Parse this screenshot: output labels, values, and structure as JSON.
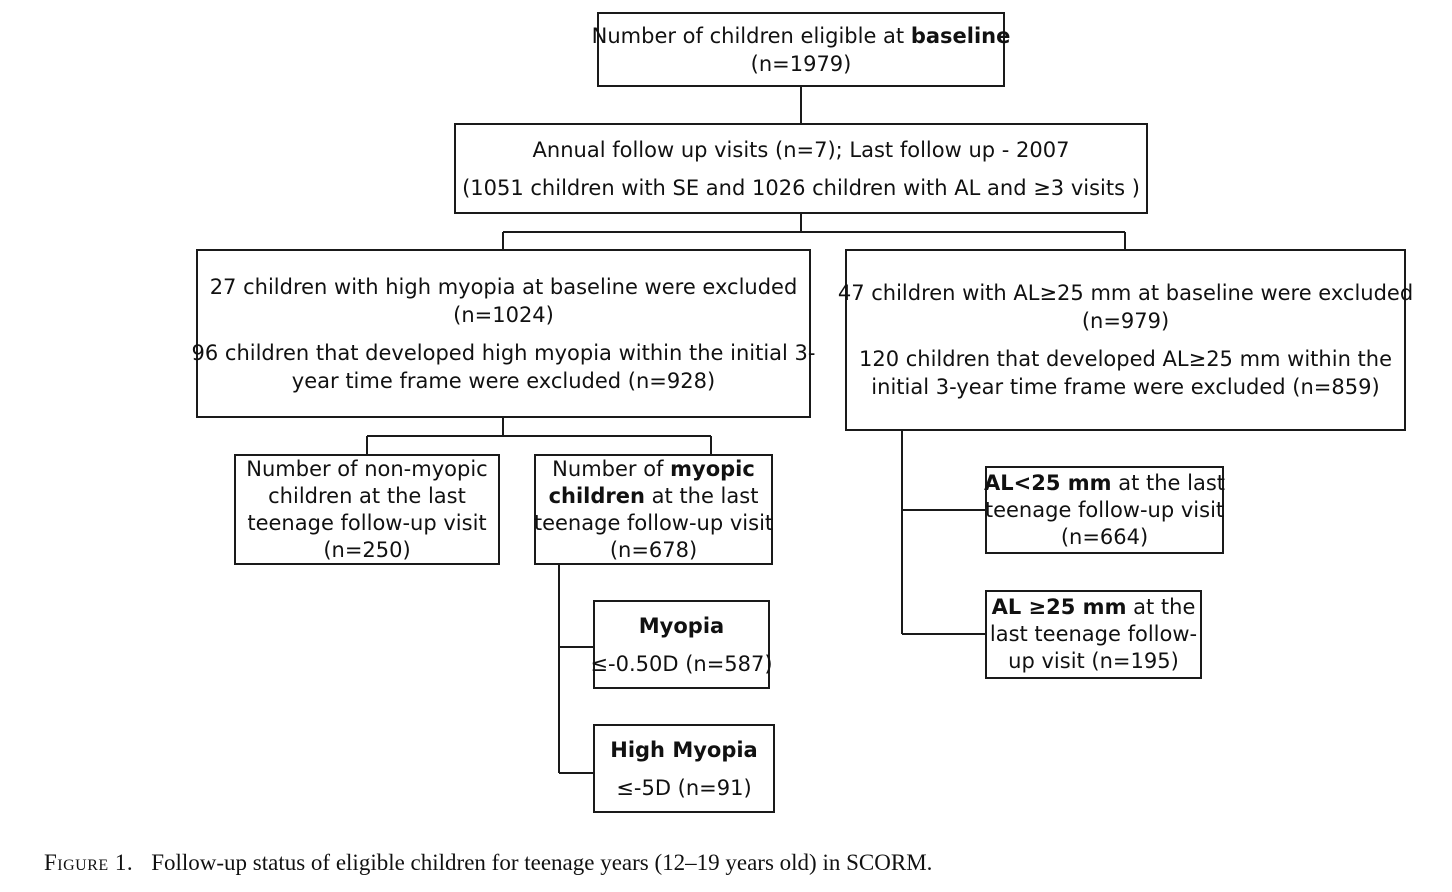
{
  "boxes": {
    "baseline": {
      "pre": "Number of children eligible at ",
      "bold": "baseline",
      "line2": "(n=1979)"
    },
    "followup": {
      "line1": "Annual follow up visits (n=7); Last follow up - 2007",
      "line2": "(1051 children with SE and 1026  children with AL and ≥3 visits )"
    },
    "se_exclusion": {
      "line1": "27 children with high myopia at baseline were excluded",
      "line2": "(n=1024)",
      "line3": "96 children that developed high myopia within the initial 3-",
      "line4": "year time frame were excluded (n=928)"
    },
    "al_exclusion": {
      "line1": "47 children with AL≥25 mm at baseline were excluded",
      "line2": "(n=979)",
      "line3": "120 children that developed AL≥25 mm within the",
      "line4": "initial 3-year time frame were excluded (n=859)"
    },
    "non_myopic": {
      "line1": "Number of non-myopic",
      "line2": "children at the last",
      "line3": "teenage follow-up visit",
      "line4": "(n=250)"
    },
    "myopic": {
      "pre": "Number of ",
      "bold1": "myopic",
      "bold2": "children",
      "post2": " at the last",
      "line3": "teenage follow-up visit",
      "line4": "(n=678)"
    },
    "myopia": {
      "title": "Myopia",
      "value": "≤-0.50D (n=587)"
    },
    "high_myopia": {
      "title": "High Myopia",
      "value": "≤-5D (n=91)"
    },
    "al_lt25": {
      "bold": "AL<25 mm",
      "post": " at the last",
      "line2": "teenage follow-up visit",
      "line3": "(n=664)"
    },
    "al_ge25": {
      "bold": "AL ≥25 mm",
      "post": " at the",
      "line2": "last teenage follow-",
      "line3": "up visit (n=195)"
    }
  },
  "caption": {
    "label": "Figure 1.",
    "text": "Follow-up status of eligible children for teenage years (12–19 years old) in SCORM."
  }
}
